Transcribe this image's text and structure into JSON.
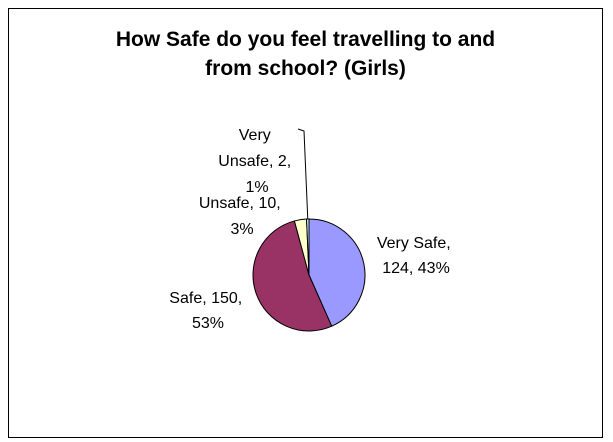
{
  "chart_data": {
    "type": "pie",
    "title_lines": [
      "How Safe do you feel travelling to and",
      "from school? (Girls)"
    ],
    "slices": [
      {
        "name": "Very Safe",
        "value": 124,
        "percent": "43%",
        "label_lines": [
          "Very Safe,",
          "124, 43%"
        ],
        "color": "#9999ff"
      },
      {
        "name": "Safe",
        "value": 150,
        "percent": "53%",
        "label_lines": [
          "Safe, 150,",
          "53%"
        ],
        "color": "#993366"
      },
      {
        "name": "Unsafe",
        "value": 10,
        "percent": "3%",
        "label_lines": [
          "Unsafe, 10,",
          "3%"
        ],
        "color": "#ffffcc"
      },
      {
        "name": "Very Unsafe",
        "value": 2,
        "percent": "1%",
        "label_lines": [
          "Very",
          "Unsafe, 2,",
          "1%"
        ],
        "color": "#ccffff"
      }
    ],
    "legend": "none"
  }
}
